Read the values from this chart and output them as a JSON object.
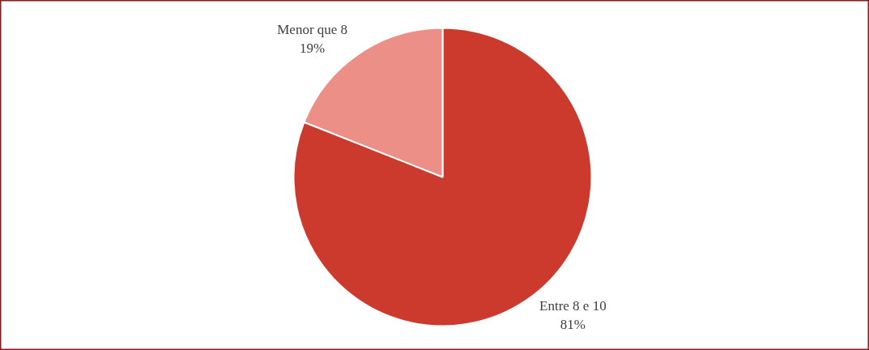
{
  "chart_data": {
    "type": "pie",
    "categories": [
      "Entre 8 e 10",
      "Menor que 8"
    ],
    "values": [
      81,
      19
    ],
    "colors": [
      "#cc3a2e",
      "#ec8f87"
    ],
    "value_labels": [
      "81%",
      "19%"
    ]
  }
}
